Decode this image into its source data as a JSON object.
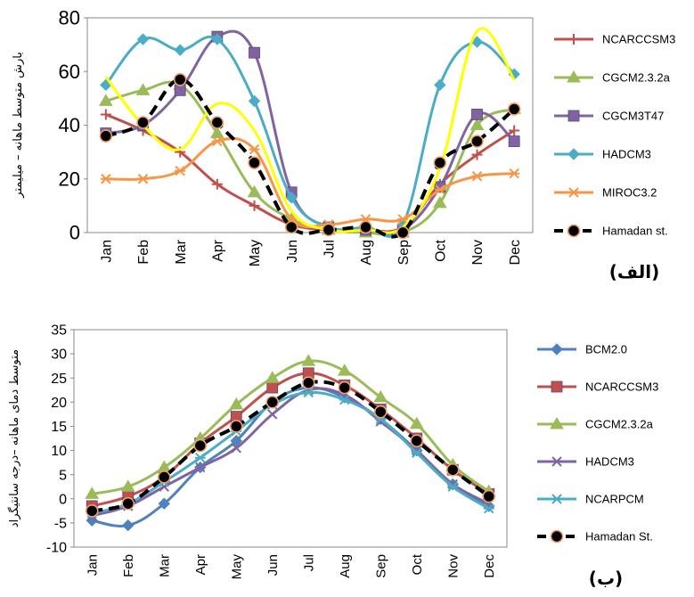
{
  "chart_data": [
    {
      "type": "line",
      "panel_label": "(الف)",
      "ylabel": "بارش متوسط ماهانه – میلیمتر",
      "ylim": [
        0,
        80
      ],
      "yticks": [
        0,
        20,
        40,
        60,
        80
      ],
      "categories": [
        "Jan",
        "Feb",
        "Mar",
        "Apr",
        "May",
        "Jun",
        "Jul",
        "Aug",
        "Sep",
        "Oct",
        "Nov",
        "Dec"
      ],
      "grid": false,
      "legend": "right",
      "series": [
        {
          "name": "NCARCCSM3",
          "color": "#c0504d",
          "marker": "plus",
          "dash": false,
          "values": [
            44,
            38,
            30,
            18,
            10,
            3,
            1,
            1,
            2,
            18,
            29,
            38
          ]
        },
        {
          "name": "CGCM2.3.2a",
          "color": "#9bbb59",
          "marker": "triangle",
          "dash": false,
          "values": [
            49,
            53,
            55,
            37,
            15,
            5,
            1,
            0,
            0,
            11,
            40,
            46
          ]
        },
        {
          "name": "CGCM3T47",
          "color": "#8064a2",
          "marker": "square",
          "dash": false,
          "values": [
            37,
            40,
            53,
            73,
            67,
            15,
            2,
            1,
            1,
            17,
            44,
            34
          ]
        },
        {
          "name": "HADCM3",
          "color": "#4bacc6",
          "marker": "diamond",
          "dash": false,
          "values": [
            55,
            72,
            68,
            72,
            49,
            13,
            2,
            2,
            3,
            55,
            71,
            59
          ]
        },
        {
          "name": "MIROC3.2",
          "color": "#f79646",
          "marker": "star",
          "dash": false,
          "values": [
            20,
            20,
            23,
            34,
            31,
            5,
            3,
            5,
            5,
            16,
            21,
            22
          ]
        },
        {
          "name": "",
          "color": "#ffff00",
          "marker": "none",
          "dash": false,
          "values": [
            58,
            40,
            31,
            48,
            38,
            8,
            1,
            1,
            2,
            24,
            75,
            57
          ]
        },
        {
          "name": "Hamadan st.",
          "color": "#000000",
          "marker": "circle",
          "dash": true,
          "values": [
            36,
            41,
            57,
            41,
            26,
            2,
            1,
            2,
            0,
            26,
            34,
            46
          ]
        }
      ]
    },
    {
      "type": "line",
      "panel_label": "(ب)",
      "ylabel": "متوسط دمای ماهانه –درجه سانتیگراد",
      "ylim": [
        -10,
        35
      ],
      "yticks": [
        -10,
        -5,
        0,
        5,
        10,
        15,
        20,
        25,
        30,
        35
      ],
      "categories": [
        "Jan",
        "Feb",
        "Mar",
        "Apr",
        "May",
        "Jun",
        "Jul",
        "Aug",
        "Sep",
        "Oct",
        "Nov",
        "Dec"
      ],
      "grid": false,
      "legend": "right",
      "series": [
        {
          "name": "BCM2.0",
          "color": "#4f81bd",
          "marker": "diamond",
          "dash": false,
          "values": [
            -4.5,
            -5.5,
            -1,
            6.5,
            12,
            20,
            23,
            21,
            16.5,
            10,
            3,
            -1.5
          ]
        },
        {
          "name": "NCARCCSM3",
          "color": "#c0504d",
          "marker": "square",
          "dash": false,
          "values": [
            -1.5,
            0.5,
            4.5,
            11.5,
            17,
            23,
            26,
            23.5,
            18.5,
            12.5,
            6,
            1
          ]
        },
        {
          "name": "CGCM2.3.2a",
          "color": "#9bbb59",
          "marker": "triangle",
          "dash": false,
          "values": [
            1,
            2.5,
            6.5,
            12.5,
            19.5,
            25,
            28.5,
            26.5,
            21,
            15.5,
            7,
            1.5
          ]
        },
        {
          "name": "HADCM3",
          "color": "#8064a2",
          "marker": "x",
          "dash": false,
          "values": [
            -3.5,
            -1.5,
            2.5,
            6.5,
            10.5,
            17.5,
            22.5,
            21.5,
            16,
            10,
            3,
            -1
          ]
        },
        {
          "name": "NCARPCM",
          "color": "#4bacc6",
          "marker": "star",
          "dash": false,
          "values": [
            -3,
            -1,
            3.5,
            8.5,
            14,
            19.5,
            22,
            20.5,
            16.5,
            9.5,
            2.5,
            -2
          ]
        },
        {
          "name": "Hamadan St.",
          "color": "#000000",
          "marker": "circle",
          "dash": true,
          "values": [
            -2.5,
            -1,
            4.5,
            11,
            15,
            20,
            24,
            23,
            18,
            12,
            6,
            0.5
          ]
        }
      ]
    }
  ]
}
